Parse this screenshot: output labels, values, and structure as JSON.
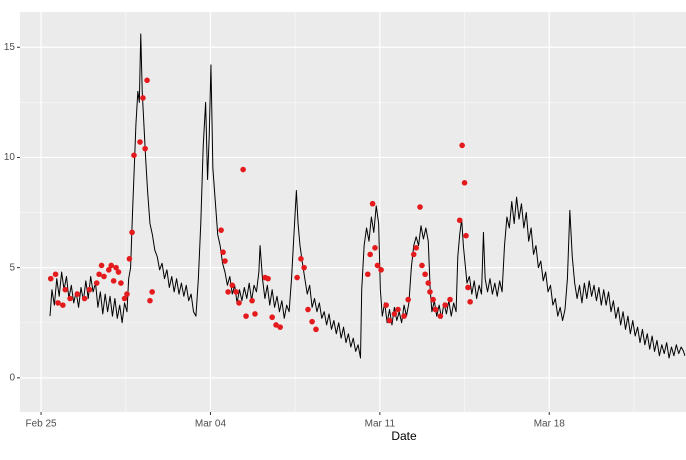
{
  "chart_data": {
    "type": "line",
    "x_label": "Date",
    "xlim": [
      -0.87,
      26.65
    ],
    "ylim": [
      -1.55,
      16.6
    ],
    "xticks": [
      {
        "value": 0,
        "label": "Feb 25"
      },
      {
        "value": 7,
        "label": "Mar 04"
      },
      {
        "value": 14,
        "label": "Mar 11"
      },
      {
        "value": 21,
        "label": "Mar 18"
      }
    ],
    "yticks": [
      0,
      5,
      10,
      15
    ],
    "minor_xticks": [
      3.5,
      10.5,
      17.5,
      24.5
    ],
    "minor_yticks": [
      2.5,
      7.5,
      12.5
    ],
    "grid": true,
    "series": [
      {
        "type": "line",
        "color": "#000000",
        "x": [
          0.37,
          0.45,
          0.55,
          0.65,
          0.75,
          0.85,
          0.95,
          1.05,
          1.15,
          1.25,
          1.35,
          1.45,
          1.55,
          1.65,
          1.75,
          1.85,
          1.95,
          2.05,
          2.15,
          2.25,
          2.35,
          2.45,
          2.55,
          2.65,
          2.75,
          2.85,
          2.95,
          3.05,
          3.15,
          3.25,
          3.35,
          3.45,
          3.55,
          3.62,
          3.7,
          3.78,
          3.85,
          3.92,
          4.0,
          4.06,
          4.12,
          4.18,
          4.25,
          4.32,
          4.4,
          4.5,
          4.6,
          4.7,
          4.8,
          4.9,
          5.0,
          5.1,
          5.2,
          5.3,
          5.4,
          5.5,
          5.6,
          5.7,
          5.8,
          5.9,
          6.0,
          6.1,
          6.2,
          6.3,
          6.4,
          6.5,
          6.6,
          6.7,
          6.8,
          6.88,
          6.95,
          7.02,
          7.1,
          7.2,
          7.3,
          7.4,
          7.5,
          7.6,
          7.7,
          7.8,
          7.9,
          8.0,
          8.1,
          8.2,
          8.3,
          8.4,
          8.5,
          8.6,
          8.7,
          8.8,
          8.9,
          9.0,
          9.05,
          9.15,
          9.25,
          9.35,
          9.45,
          9.55,
          9.65,
          9.75,
          9.85,
          9.95,
          10.05,
          10.15,
          10.25,
          10.35,
          10.45,
          10.55,
          10.62,
          10.7,
          10.8,
          10.9,
          11.0,
          11.1,
          11.2,
          11.3,
          11.4,
          11.5,
          11.6,
          11.7,
          11.8,
          11.9,
          12.0,
          12.1,
          12.2,
          12.3,
          12.4,
          12.5,
          12.6,
          12.7,
          12.8,
          12.9,
          13.0,
          13.1,
          13.2,
          13.25,
          13.35,
          13.45,
          13.55,
          13.65,
          13.75,
          13.85,
          13.95,
          14.02,
          14.1,
          14.2,
          14.3,
          14.4,
          14.5,
          14.6,
          14.7,
          14.8,
          14.9,
          15.0,
          15.1,
          15.2,
          15.3,
          15.4,
          15.5,
          15.6,
          15.7,
          15.8,
          15.9,
          16.0,
          16.08,
          16.15,
          16.25,
          16.35,
          16.45,
          16.55,
          16.65,
          16.75,
          16.85,
          16.95,
          17.05,
          17.15,
          17.22,
          17.3,
          17.38,
          17.45,
          17.52,
          17.6,
          17.7,
          17.8,
          17.9,
          18.0,
          18.1,
          18.2,
          18.28,
          18.35,
          18.45,
          18.55,
          18.65,
          18.75,
          18.85,
          18.95,
          19.05,
          19.15,
          19.25,
          19.35,
          19.45,
          19.55,
          19.65,
          19.75,
          19.85,
          19.95,
          20.05,
          20.15,
          20.25,
          20.35,
          20.45,
          20.55,
          20.65,
          20.75,
          20.85,
          20.95,
          21.05,
          21.15,
          21.25,
          21.35,
          21.45,
          21.55,
          21.65,
          21.75,
          21.85,
          21.95,
          22.05,
          22.15,
          22.25,
          22.35,
          22.45,
          22.55,
          22.65,
          22.75,
          22.85,
          22.95,
          23.05,
          23.15,
          23.25,
          23.35,
          23.45,
          23.55,
          23.65,
          23.75,
          23.85,
          23.95,
          24.05,
          24.15,
          24.25,
          24.35,
          24.45,
          24.55,
          24.65,
          24.75,
          24.85,
          24.95,
          25.05,
          25.15,
          25.25,
          25.35,
          25.45,
          25.55,
          25.65,
          25.75,
          25.85,
          25.95,
          26.05,
          26.15,
          26.25,
          26.35,
          26.45,
          26.55,
          26.6
        ],
        "values": [
          2.8,
          4.0,
          3.3,
          4.5,
          3.7,
          4.8,
          4.0,
          4.6,
          3.6,
          4.2,
          3.4,
          3.9,
          3.2,
          4.1,
          3.5,
          4.4,
          3.6,
          4.6,
          3.9,
          4.3,
          3.2,
          3.9,
          2.9,
          3.8,
          3.0,
          3.7,
          2.8,
          3.6,
          2.7,
          3.3,
          2.5,
          3.4,
          3.0,
          4.5,
          5.0,
          7.5,
          9.5,
          11.5,
          13.0,
          12.5,
          15.6,
          13.0,
          11.5,
          10.0,
          8.5,
          7.0,
          6.5,
          5.8,
          5.5,
          4.9,
          5.2,
          4.5,
          4.9,
          4.1,
          4.6,
          3.9,
          4.5,
          3.8,
          4.3,
          3.7,
          4.2,
          3.5,
          3.8,
          3.0,
          2.8,
          4.5,
          7.0,
          10.5,
          12.5,
          9.0,
          11.0,
          14.2,
          9.5,
          8.0,
          6.5,
          6.0,
          5.2,
          4.8,
          4.2,
          4.6,
          3.8,
          4.2,
          3.4,
          4.0,
          3.5,
          4.1,
          3.6,
          4.3,
          3.5,
          4.2,
          3.9,
          4.8,
          6.0,
          4.5,
          3.6,
          4.2,
          3.3,
          4.0,
          3.2,
          3.7,
          3.0,
          3.5,
          2.7,
          3.3,
          3.0,
          4.5,
          6.5,
          8.5,
          7.0,
          6.0,
          5.2,
          4.5,
          3.8,
          4.2,
          3.2,
          3.6,
          3.0,
          3.4,
          2.7,
          3.0,
          2.4,
          2.9,
          2.2,
          2.6,
          2.0,
          2.5,
          1.8,
          2.3,
          1.6,
          2.0,
          1.4,
          1.8,
          1.2,
          1.5,
          0.9,
          4.0,
          6.0,
          6.8,
          6.2,
          7.3,
          6.6,
          7.8,
          7.0,
          4.0,
          2.8,
          3.4,
          2.5,
          3.1,
          2.4,
          3.2,
          2.6,
          3.0,
          2.5,
          3.3,
          2.8,
          3.4,
          5.0,
          6.0,
          6.4,
          6.0,
          6.9,
          6.3,
          6.8,
          6.2,
          4.0,
          3.0,
          3.5,
          2.8,
          3.3,
          2.7,
          3.4,
          2.9,
          3.5,
          2.8,
          3.4,
          3.0,
          5.5,
          6.5,
          7.2,
          6.0,
          5.2,
          4.3,
          4.6,
          3.8,
          4.4,
          3.6,
          4.2,
          3.8,
          6.6,
          4.5,
          3.9,
          4.5,
          3.8,
          4.3,
          3.7,
          4.4,
          3.9,
          6.0,
          7.3,
          6.8,
          8.0,
          7.0,
          8.2,
          7.2,
          7.9,
          6.8,
          7.5,
          6.2,
          6.8,
          5.6,
          6.0,
          5.0,
          5.3,
          4.4,
          4.8,
          3.9,
          4.2,
          3.3,
          3.6,
          2.8,
          3.2,
          2.6,
          3.1,
          4.5,
          7.6,
          5.5,
          4.3,
          3.6,
          4.2,
          3.4,
          4.3,
          3.6,
          4.4,
          3.7,
          4.2,
          3.5,
          4.1,
          3.3,
          4.0,
          3.3,
          3.9,
          3.0,
          3.5,
          2.7,
          3.2,
          2.4,
          3.0,
          2.2,
          2.8,
          2.0,
          2.6,
          1.9,
          2.3,
          1.6,
          2.2,
          1.5,
          2.0,
          1.3,
          1.9,
          1.2,
          1.7,
          1.0,
          1.5,
          1.1,
          1.6,
          0.9,
          1.4,
          1.0,
          1.5,
          1.1,
          1.4,
          1.2,
          1.0
        ]
      },
      {
        "type": "scatter",
        "color": "#e41a1c",
        "x": [
          0.4,
          0.6,
          0.7,
          0.9,
          1.0,
          1.2,
          1.5,
          1.8,
          2.0,
          2.3,
          2.4,
          2.5,
          2.6,
          2.8,
          2.9,
          3.0,
          3.1,
          3.2,
          3.3,
          3.45,
          3.55,
          3.65,
          3.76,
          3.84,
          4.09,
          4.21,
          4.3,
          4.38,
          4.5,
          4.59,
          7.44,
          7.52,
          7.6,
          7.73,
          7.9,
          8.06,
          8.18,
          8.35,
          8.47,
          8.72,
          8.84,
          9.26,
          9.38,
          9.55,
          9.71,
          9.88,
          10.58,
          10.74,
          10.87,
          11.03,
          11.2,
          11.36,
          13.5,
          13.6,
          13.7,
          13.8,
          13.9,
          14.05,
          14.26,
          14.4,
          14.6,
          14.75,
          15.0,
          15.17,
          15.4,
          15.5,
          15.66,
          15.74,
          15.87,
          16.0,
          16.07,
          16.2,
          16.3,
          16.5,
          16.7,
          16.9,
          17.3,
          17.4,
          17.5,
          17.56,
          17.64,
          17.73
        ],
        "values": [
          4.5,
          4.7,
          3.4,
          3.3,
          4.0,
          3.6,
          3.8,
          3.6,
          4.0,
          4.3,
          4.7,
          5.1,
          4.6,
          4.9,
          5.1,
          4.4,
          5.0,
          4.8,
          4.3,
          3.6,
          3.8,
          5.4,
          6.6,
          10.1,
          10.7,
          12.7,
          10.4,
          13.5,
          3.5,
          3.9,
          6.7,
          5.7,
          5.3,
          3.9,
          4.2,
          3.9,
          3.4,
          9.45,
          2.8,
          3.5,
          2.9,
          4.55,
          4.5,
          2.75,
          2.4,
          2.3,
          4.55,
          5.4,
          5.0,
          3.1,
          2.55,
          2.2,
          4.7,
          5.6,
          7.9,
          5.9,
          5.1,
          4.9,
          3.3,
          2.6,
          2.9,
          3.1,
          2.8,
          3.55,
          5.6,
          5.9,
          7.75,
          5.1,
          4.7,
          4.3,
          3.9,
          3.55,
          3.1,
          2.8,
          3.3,
          3.55,
          7.15,
          10.55,
          8.85,
          6.45,
          4.1,
          3.45
        ]
      }
    ]
  }
}
